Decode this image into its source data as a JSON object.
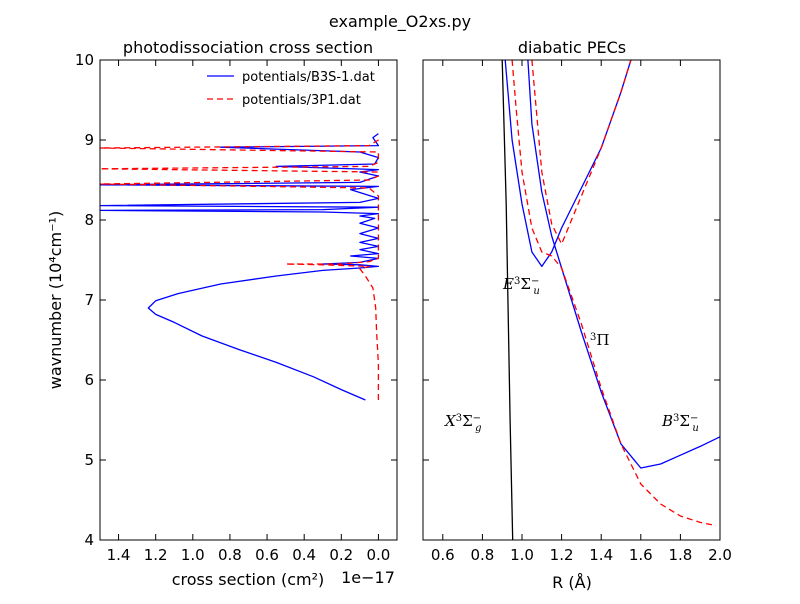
{
  "figure": {
    "suptitle": "example_O2xs.py"
  },
  "chart_data": [
    {
      "type": "line",
      "title": "photodissociation cross section",
      "xlabel": "cross section (cm²)",
      "ylabel": "wavnumber (10⁴cm⁻¹)",
      "x_multiplier_label": "1e−17",
      "xlim": [
        1.5,
        -0.1
      ],
      "ylim": [
        4,
        10
      ],
      "x_ticks": [
        1.4,
        1.2,
        1.0,
        0.8,
        0.6,
        0.4,
        0.2,
        0.0
      ],
      "x_tick_labels": [
        "1.4",
        "1.2",
        "1.0",
        "0.8",
        "0.6",
        "0.4",
        "0.2",
        "0.0"
      ],
      "y_ticks": [
        4,
        5,
        6,
        7,
        8,
        9,
        10
      ],
      "y_tick_labels": [
        "4",
        "5",
        "6",
        "7",
        "8",
        "9",
        "10"
      ],
      "grid": false,
      "legend_position": "top-right",
      "series": [
        {
          "name": "potentials/B3S-1.dat",
          "color": "#0000ff",
          "dash": "solid",
          "points": [
            [
              0.07,
              5.75
            ],
            [
              0.2,
              5.88
            ],
            [
              0.35,
              6.04
            ],
            [
              0.55,
              6.22
            ],
            [
              0.75,
              6.38
            ],
            [
              0.95,
              6.55
            ],
            [
              1.1,
              6.72
            ],
            [
              1.2,
              6.82
            ],
            [
              1.24,
              6.9
            ],
            [
              1.2,
              6.99
            ],
            [
              1.08,
              7.08
            ],
            [
              0.85,
              7.2
            ],
            [
              0.55,
              7.3
            ],
            [
              0.3,
              7.37
            ],
            [
              0.1,
              7.4
            ],
            [
              0.0,
              7.42
            ],
            [
              0.1,
              7.44
            ],
            [
              0.3,
              7.45
            ],
            [
              0.1,
              7.47
            ],
            [
              0.0,
              7.52
            ],
            [
              0.15,
              7.55
            ],
            [
              0.0,
              7.58
            ],
            [
              0.1,
              7.63
            ],
            [
              0.0,
              7.67
            ],
            [
              0.1,
              7.72
            ],
            [
              0.0,
              7.77
            ],
            [
              0.1,
              7.83
            ],
            [
              0.0,
              7.9
            ],
            [
              0.1,
              7.96
            ],
            [
              0.02,
              8.02
            ],
            [
              0.1,
              8.05
            ],
            [
              0.0,
              8.08
            ],
            [
              0.3,
              8.1
            ],
            [
              1.5,
              8.12
            ],
            [
              0.3,
              8.13
            ],
            [
              0.0,
              8.16
            ],
            [
              1.5,
              8.18
            ],
            [
              0.1,
              8.22
            ],
            [
              0.0,
              8.27
            ],
            [
              0.15,
              8.38
            ],
            [
              0.0,
              8.42
            ],
            [
              1.5,
              8.44
            ],
            [
              0.1,
              8.47
            ],
            [
              0.0,
              8.55
            ],
            [
              0.1,
              8.6
            ],
            [
              0.0,
              8.63
            ],
            [
              0.55,
              8.67
            ],
            [
              0.02,
              8.7
            ],
            [
              0.0,
              8.78
            ],
            [
              0.1,
              8.85
            ],
            [
              0.85,
              8.91
            ],
            [
              0.0,
              8.93
            ],
            [
              0.03,
              9.03
            ],
            [
              0.0,
              9.08
            ]
          ]
        },
        {
          "name": "potentials/3P1.dat",
          "color": "#ff0000",
          "dash": "dashed",
          "points": [
            [
              0.0,
              5.75
            ],
            [
              0.0,
              6.2
            ],
            [
              0.01,
              6.6
            ],
            [
              0.015,
              6.9
            ],
            [
              0.03,
              7.15
            ],
            [
              0.07,
              7.3
            ],
            [
              0.1,
              7.39
            ],
            [
              0.05,
              7.42
            ],
            [
              0.3,
              7.44
            ],
            [
              0.5,
              7.45
            ],
            [
              0.2,
              7.45
            ],
            [
              0.05,
              7.48
            ],
            [
              0.0,
              7.52
            ],
            [
              0.0,
              7.62
            ],
            [
              0.0,
              7.75
            ],
            [
              0.0,
              7.9
            ],
            [
              0.0,
              8.05
            ],
            [
              0.0,
              8.2
            ],
            [
              0.0,
              8.3
            ],
            [
              0.05,
              8.4
            ],
            [
              1.5,
              8.45
            ],
            [
              0.05,
              8.5
            ],
            [
              0.0,
              8.55
            ],
            [
              0.0,
              8.6
            ],
            [
              1.5,
              8.64
            ],
            [
              0.05,
              8.67
            ],
            [
              0.0,
              8.72
            ],
            [
              0.0,
              8.85
            ],
            [
              1.5,
              8.9
            ],
            [
              0.05,
              8.93
            ],
            [
              0.0,
              9.0
            ],
            [
              0.0,
              9.05
            ]
          ]
        }
      ]
    },
    {
      "type": "line",
      "title": "diabatic PECs",
      "xlabel": "R (Å)",
      "ylabel": "",
      "xlim": [
        0.5,
        2.0
      ],
      "ylim": [
        4,
        10
      ],
      "x_ticks": [
        0.6,
        0.8,
        1.0,
        1.2,
        1.4,
        1.6,
        1.8,
        2.0
      ],
      "x_tick_labels": [
        "0.6",
        "0.8",
        "1.0",
        "1.2",
        "1.4",
        "1.6",
        "1.8",
        "2.0"
      ],
      "y_ticks": [
        4,
        5,
        6,
        7,
        8,
        9,
        10
      ],
      "grid": false,
      "annotations": [
        {
          "text": "X³Σg⁻",
          "x": 0.62,
          "y": 5.45,
          "color": "#000000"
        },
        {
          "text": "E³Σu⁻",
          "x": 0.95,
          "y": 7.15,
          "color": "#0000ff"
        },
        {
          "text": "³Π",
          "x": 1.38,
          "y": 6.5,
          "color": "#ff0000"
        },
        {
          "text": "B³Σu⁻",
          "x": 1.7,
          "y": 5.45,
          "color": "#0000ff"
        }
      ],
      "series": [
        {
          "color": "#000000",
          "dash": "solid",
          "points": [
            [
              0.9,
              10.0
            ],
            [
              0.92,
              8.2
            ],
            [
              0.94,
              5.5
            ],
            [
              0.953,
              4.0
            ]
          ]
        },
        {
          "color": "#0000ff",
          "dash": "solid",
          "points": [
            [
              0.915,
              10.0
            ],
            [
              0.95,
              9.0
            ],
            [
              1.0,
              8.2
            ],
            [
              1.05,
              7.6
            ],
            [
              1.1,
              7.42
            ],
            [
              1.15,
              7.6
            ],
            [
              1.2,
              7.9
            ],
            [
              1.3,
              8.4
            ],
            [
              1.4,
              8.9
            ],
            [
              1.5,
              9.6
            ],
            [
              1.55,
              10.0
            ]
          ]
        },
        {
          "color": "#0000ff",
          "dash": "solid",
          "points": [
            [
              1.03,
              10.0
            ],
            [
              1.05,
              9.2
            ],
            [
              1.1,
              8.35
            ],
            [
              1.15,
              7.8
            ],
            [
              1.2,
              7.4
            ],
            [
              1.3,
              6.6
            ],
            [
              1.4,
              5.85
            ],
            [
              1.5,
              5.2
            ],
            [
              1.6,
              4.9
            ],
            [
              1.7,
              4.95
            ],
            [
              1.8,
              5.06
            ],
            [
              1.9,
              5.17
            ],
            [
              2.0,
              5.29
            ]
          ]
        },
        {
          "color": "#ff0000",
          "dash": "dashed",
          "points": [
            [
              0.95,
              10.0
            ],
            [
              0.97,
              9.4
            ],
            [
              1.0,
              8.6
            ],
            [
              1.05,
              7.9
            ],
            [
              1.1,
              7.6
            ],
            [
              1.15,
              7.55
            ],
            [
              1.2,
              7.4
            ],
            [
              1.3,
              6.7
            ],
            [
              1.4,
              5.9
            ],
            [
              1.5,
              5.2
            ],
            [
              1.6,
              4.7
            ],
            [
              1.7,
              4.45
            ],
            [
              1.8,
              4.3
            ],
            [
              1.9,
              4.22
            ],
            [
              1.98,
              4.18
            ]
          ]
        },
        {
          "color": "#ff0000",
          "dash": "dashed",
          "points": [
            [
              1.05,
              10.0
            ],
            [
              1.1,
              8.6
            ],
            [
              1.15,
              7.95
            ],
            [
              1.2,
              7.7
            ],
            [
              1.25,
              8.0
            ],
            [
              1.3,
              8.3
            ],
            [
              1.4,
              8.9
            ],
            [
              1.5,
              9.6
            ],
            [
              1.55,
              10.0
            ]
          ]
        }
      ]
    }
  ]
}
